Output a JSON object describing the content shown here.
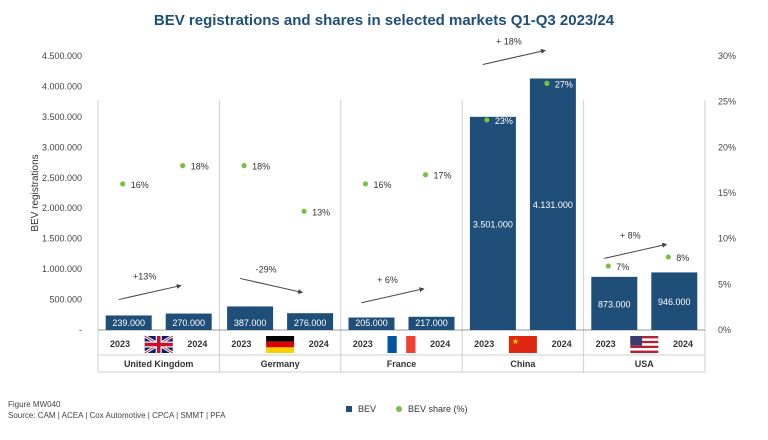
{
  "chart_data": {
    "type": "bar",
    "title": "BEV registrations and shares in selected markets Q1-Q3 2023/24",
    "ylabel": "BEV registrations",
    "ylim": [
      0,
      4500000
    ],
    "y2lim": [
      0,
      30
    ],
    "yticks": [
      "-",
      "500.000",
      "1.000.000",
      "1.500.000",
      "2.000.000",
      "2.500.000",
      "3.000.000",
      "3.500.000",
      "4.000.000",
      "4.500.000"
    ],
    "y2ticks": [
      "0%",
      "5%",
      "10%",
      "15%",
      "20%",
      "25%",
      "30%"
    ],
    "legend_position": "bottom",
    "series": [
      {
        "name": "BEV",
        "color": "#1f4e79"
      },
      {
        "name": "BEV share (%)",
        "color": "#7ac143"
      }
    ],
    "markets": [
      {
        "name": "United Kingdom",
        "flag": "uk-flag",
        "change": "+13%",
        "trend": "up",
        "bars": [
          {
            "year": "2023",
            "value": 239000,
            "label": "239.000",
            "share": 16,
            "share_label": "16%"
          },
          {
            "year": "2024",
            "value": 270000,
            "label": "270.000",
            "share": 18,
            "share_label": "18%"
          }
        ]
      },
      {
        "name": "Germany",
        "flag": "germany-flag",
        "change": "-29%",
        "trend": "down",
        "bars": [
          {
            "year": "2023",
            "value": 387000,
            "label": "387.000",
            "share": 18,
            "share_label": "18%"
          },
          {
            "year": "2024",
            "value": 276000,
            "label": "276.000",
            "share": 13,
            "share_label": "13%"
          }
        ]
      },
      {
        "name": "France",
        "flag": "france-flag",
        "change": "+ 6%",
        "trend": "up",
        "bars": [
          {
            "year": "2023",
            "value": 205000,
            "label": "205.000",
            "share": 16,
            "share_label": "16%"
          },
          {
            "year": "2024",
            "value": 217000,
            "label": "217.000",
            "share": 17,
            "share_label": "17%"
          }
        ]
      },
      {
        "name": "China",
        "flag": "china-flag",
        "change": "+ 18%",
        "trend": "up",
        "bars": [
          {
            "year": "2023",
            "value": 3501000,
            "label": "3.501.000",
            "share": 23,
            "share_label": "23%"
          },
          {
            "year": "2024",
            "value": 4131000,
            "label": "4.131.000",
            "share": 27,
            "share_label": "27%"
          }
        ]
      },
      {
        "name": "USA",
        "flag": "usa-flag",
        "change": "+ 8%",
        "trend": "up",
        "bars": [
          {
            "year": "2023",
            "value": 873000,
            "label": "873.000",
            "share": 7,
            "share_label": "7%"
          },
          {
            "year": "2024",
            "value": 946000,
            "label": "946.000",
            "share": 8,
            "share_label": "8%"
          }
        ]
      }
    ]
  },
  "footer": {
    "figure": "Figure MW040",
    "source": "Source: CAM | ACEA | Cox Automotive | CPCA | SMMT | PFA"
  }
}
